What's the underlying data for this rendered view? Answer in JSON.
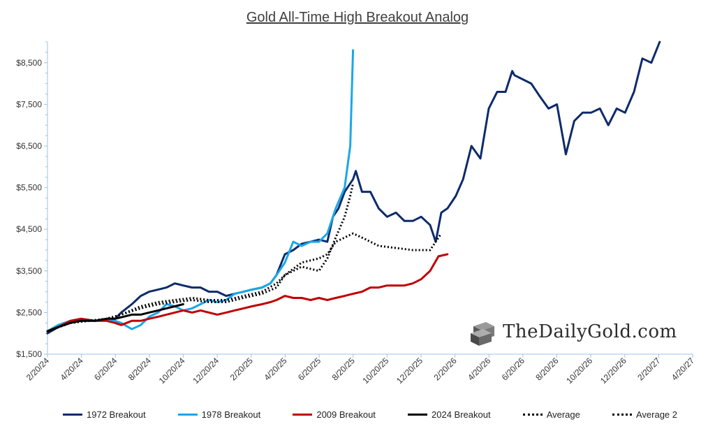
{
  "chart_data": {
    "type": "line",
    "title": "Gold All-Time High Breakout Analog",
    "xlabel": "",
    "ylabel": "",
    "x_tick_labels": [
      "2/20/24",
      "4/20/24",
      "6/20/24",
      "8/20/24",
      "10/20/24",
      "12/20/24",
      "2/20/25",
      "4/20/25",
      "6/20/25",
      "8/20/25",
      "10/20/25",
      "12/20/25",
      "2/20/26",
      "4/20/26",
      "6/20/26",
      "8/20/26",
      "10/20/26",
      "12/20/26",
      "2/20/27",
      "4/20/27"
    ],
    "x_range": [
      "2024-02-20",
      "2027-04-20"
    ],
    "y_ticks": [
      1500,
      2500,
      3500,
      4500,
      5500,
      6500,
      7500,
      8500
    ],
    "y_tick_labels": [
      "$1,500",
      "$2,500",
      "$3,500",
      "$4,500",
      "$5,500",
      "$6,500",
      "$7,500",
      "$8,500"
    ],
    "ylim": [
      1500,
      9000
    ],
    "grid": false,
    "legend_position": "bottom",
    "series": [
      {
        "name": "1972 Breakout",
        "color": "#0d2b6b",
        "dash": "solid",
        "x": [
          "2024-02-20",
          "2024-03-10",
          "2024-04-01",
          "2024-04-20",
          "2024-05-15",
          "2024-06-05",
          "2024-06-20",
          "2024-07-01",
          "2024-07-20",
          "2024-08-05",
          "2024-08-20",
          "2024-09-05",
          "2024-09-20",
          "2024-10-05",
          "2024-10-20",
          "2024-11-05",
          "2024-11-20",
          "2024-12-05",
          "2024-12-20",
          "2025-01-05",
          "2025-01-20",
          "2025-02-05",
          "2025-02-20",
          "2025-03-10",
          "2025-03-25",
          "2025-04-05",
          "2025-04-20",
          "2025-05-05",
          "2025-05-20",
          "2025-06-05",
          "2025-06-20",
          "2025-07-05",
          "2025-07-15",
          "2025-07-25",
          "2025-08-05",
          "2025-08-15",
          "2025-08-20",
          "2025-08-25",
          "2025-09-05",
          "2025-09-20",
          "2025-10-05",
          "2025-10-20",
          "2025-11-05",
          "2025-11-20",
          "2025-12-05",
          "2025-12-20",
          "2026-01-05",
          "2026-01-15",
          "2026-01-25",
          "2026-02-05",
          "2026-02-20",
          "2026-03-05",
          "2026-03-20",
          "2026-04-05",
          "2026-04-15",
          "2026-04-20",
          "2026-05-05",
          "2026-05-20",
          "2026-06-01",
          "2026-06-05",
          "2026-06-20",
          "2026-07-05",
          "2026-07-20",
          "2026-08-05",
          "2026-08-20",
          "2026-09-05",
          "2026-09-20",
          "2026-10-05",
          "2026-10-20",
          "2026-11-05",
          "2026-11-20",
          "2026-12-05",
          "2026-12-20",
          "2027-01-05",
          "2027-01-20",
          "2027-02-05",
          "2027-02-20"
        ],
        "y": [
          2000,
          2150,
          2300,
          2350,
          2300,
          2350,
          2350,
          2500,
          2700,
          2900,
          3000,
          3050,
          3100,
          3200,
          3150,
          3100,
          3100,
          3000,
          3000,
          2900,
          2950,
          3000,
          3050,
          3100,
          3200,
          3400,
          3900,
          4000,
          4150,
          4200,
          4250,
          4200,
          4800,
          5000,
          5400,
          5600,
          5700,
          5900,
          5400,
          5400,
          5000,
          4800,
          4900,
          4700,
          4700,
          4800,
          4600,
          4200,
          4900,
          5000,
          5300,
          5700,
          6500,
          6200,
          7000,
          7400,
          7800,
          7800,
          8300,
          8200,
          8100,
          8000,
          7700,
          7400,
          7500,
          6300,
          7100,
          7300,
          7300,
          7400,
          7000,
          7400,
          7300,
          7800,
          8600,
          8500,
          9000
        ]
      },
      {
        "name": "1978 Breakout",
        "color": "#1aa7e8",
        "dash": "solid",
        "x": [
          "2024-02-20",
          "2024-03-10",
          "2024-04-01",
          "2024-04-20",
          "2024-05-15",
          "2024-06-05",
          "2024-06-20",
          "2024-07-01",
          "2024-07-20",
          "2024-08-05",
          "2024-08-20",
          "2024-09-05",
          "2024-09-20",
          "2024-10-05",
          "2024-10-20",
          "2024-11-05",
          "2024-11-20",
          "2024-12-05",
          "2024-12-20",
          "2025-01-05",
          "2025-01-20",
          "2025-02-05",
          "2025-02-20",
          "2025-03-10",
          "2025-03-25",
          "2025-04-05",
          "2025-04-20",
          "2025-05-05",
          "2025-05-20",
          "2025-06-05",
          "2025-06-20",
          "2025-07-05",
          "2025-07-20",
          "2025-08-05",
          "2025-08-15",
          "2025-08-20"
        ],
        "y": [
          2050,
          2200,
          2300,
          2300,
          2300,
          2350,
          2300,
          2250,
          2100,
          2200,
          2400,
          2500,
          2700,
          2650,
          2550,
          2600,
          2700,
          2800,
          2750,
          2800,
          2950,
          3000,
          3050,
          3100,
          3200,
          3400,
          3700,
          4200,
          4100,
          4200,
          4200,
          4400,
          5000,
          5500,
          6500,
          8800
        ]
      },
      {
        "name": "2009 Breakout",
        "color": "#c00000",
        "dash": "solid",
        "x": [
          "2024-02-20",
          "2024-03-10",
          "2024-04-01",
          "2024-04-20",
          "2024-05-15",
          "2024-06-05",
          "2024-06-20",
          "2024-07-01",
          "2024-07-20",
          "2024-08-05",
          "2024-08-20",
          "2024-09-05",
          "2024-09-20",
          "2024-10-05",
          "2024-10-20",
          "2024-11-05",
          "2024-11-20",
          "2024-12-05",
          "2024-12-20",
          "2025-01-05",
          "2025-01-20",
          "2025-02-05",
          "2025-02-20",
          "2025-03-10",
          "2025-03-25",
          "2025-04-05",
          "2025-04-20",
          "2025-05-05",
          "2025-05-20",
          "2025-06-05",
          "2025-06-20",
          "2025-07-05",
          "2025-07-20",
          "2025-08-05",
          "2025-08-20",
          "2025-09-05",
          "2025-09-20",
          "2025-10-05",
          "2025-10-20",
          "2025-11-05",
          "2025-11-20",
          "2025-12-05",
          "2025-12-20",
          "2026-01-05",
          "2026-01-20",
          "2026-02-05"
        ],
        "y": [
          2050,
          2150,
          2300,
          2350,
          2300,
          2300,
          2250,
          2200,
          2300,
          2300,
          2350,
          2400,
          2450,
          2500,
          2550,
          2500,
          2550,
          2500,
          2450,
          2500,
          2550,
          2600,
          2650,
          2700,
          2750,
          2800,
          2900,
          2850,
          2850,
          2800,
          2850,
          2800,
          2850,
          2900,
          2950,
          3000,
          3100,
          3100,
          3150,
          3150,
          3150,
          3200,
          3300,
          3500,
          3850,
          3900
        ]
      },
      {
        "name": "2024 Breakout",
        "color": "#000000",
        "dash": "solid",
        "x": [
          "2024-02-20",
          "2024-03-10",
          "2024-04-01",
          "2024-04-20",
          "2024-05-15",
          "2024-06-05",
          "2024-06-20",
          "2024-07-05",
          "2024-07-20",
          "2024-08-05",
          "2024-08-20",
          "2024-09-05",
          "2024-09-20",
          "2024-10-05",
          "2024-10-20"
        ],
        "y": [
          2050,
          2150,
          2250,
          2300,
          2300,
          2350,
          2350,
          2400,
          2450,
          2450,
          2500,
          2550,
          2600,
          2650,
          2700
        ]
      },
      {
        "name": "Average",
        "color": "#000000",
        "dash": "dotted",
        "x": [
          "2024-02-20",
          "2024-04-01",
          "2024-06-05",
          "2024-07-01",
          "2024-08-05",
          "2024-09-05",
          "2024-10-05",
          "2024-11-05",
          "2024-12-05",
          "2025-01-05",
          "2025-02-05",
          "2025-03-10",
          "2025-04-05",
          "2025-04-20",
          "2025-05-20",
          "2025-06-20",
          "2025-07-05",
          "2025-07-20",
          "2025-08-05",
          "2025-08-20",
          "2025-09-05",
          "2025-10-05",
          "2025-11-05",
          "2025-12-05",
          "2026-01-05",
          "2026-01-25"
        ],
        "y": [
          2050,
          2250,
          2350,
          2450,
          2600,
          2700,
          2750,
          2800,
          2750,
          2750,
          2850,
          2950,
          3100,
          3400,
          3700,
          3800,
          3900,
          4200,
          4300,
          4400,
          4300,
          4100,
          4050,
          4000,
          4000,
          4400
        ]
      },
      {
        "name": "Average 2",
        "color": "#000000",
        "dash": "dotted",
        "x": [
          "2024-02-20",
          "2024-04-01",
          "2024-06-05",
          "2024-07-01",
          "2024-08-05",
          "2024-09-05",
          "2024-10-05",
          "2024-11-05",
          "2024-12-05",
          "2025-01-05",
          "2025-02-05",
          "2025-03-10",
          "2025-04-05",
          "2025-04-20",
          "2025-05-20",
          "2025-06-20",
          "2025-07-05",
          "2025-07-20",
          "2025-08-05",
          "2025-08-15",
          "2025-08-20"
        ],
        "y": [
          2050,
          2250,
          2350,
          2450,
          2650,
          2750,
          2800,
          2850,
          2800,
          2800,
          2900,
          3000,
          3200,
          3400,
          3600,
          3500,
          3800,
          4300,
          4800,
          5300,
          5600
        ]
      }
    ]
  },
  "watermark": {
    "text": "TheDailyGold.com"
  }
}
